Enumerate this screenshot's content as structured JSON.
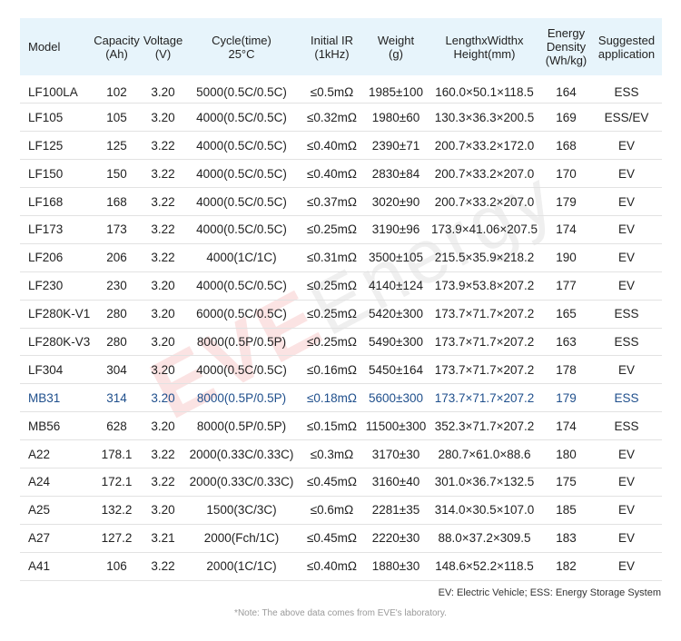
{
  "table": {
    "headers": [
      {
        "line1": "Model",
        "line2": ""
      },
      {
        "line1": "Capacity",
        "line2": "(Ah)"
      },
      {
        "line1": "Voltage",
        "line2": "(V)"
      },
      {
        "line1": "Cycle(time)",
        "line2": "25°C"
      },
      {
        "line1": "Initial IR",
        "line2": "(1kHz)"
      },
      {
        "line1": "Weight",
        "line2": "(g)"
      },
      {
        "line1": "LengthxWidthx",
        "line2": "Height(mm)"
      },
      {
        "line1": "Energy",
        "line2": "Density",
        "line3": "(Wh/kg)"
      },
      {
        "line1": "Suggested",
        "line2": "application"
      }
    ],
    "rows": [
      [
        "LF100LA",
        "102",
        "3.20",
        "5000(0.5C/0.5C)",
        "≤0.5mΩ",
        "1985±100",
        "160.0×50.1×118.5",
        "164",
        "ESS"
      ],
      [
        "LF105",
        "105",
        "3.20",
        "4000(0.5C/0.5C)",
        "≤0.32mΩ",
        "1980±60",
        "130.3×36.3×200.5",
        "169",
        "ESS/EV"
      ],
      [
        "LF125",
        "125",
        "3.22",
        "4000(0.5C/0.5C)",
        "≤0.40mΩ",
        "2390±71",
        "200.7×33.2×172.0",
        "168",
        "EV"
      ],
      [
        "LF150",
        "150",
        "3.22",
        "4000(0.5C/0.5C)",
        "≤0.40mΩ",
        "2830±84",
        "200.7×33.2×207.0",
        "170",
        "EV"
      ],
      [
        "LF168",
        "168",
        "3.22",
        "4000(0.5C/0.5C)",
        "≤0.37mΩ",
        "3020±90",
        "200.7×33.2×207.0",
        "179",
        "EV"
      ],
      [
        "LF173",
        "173",
        "3.22",
        "4000(0.5C/0.5C)",
        "≤0.25mΩ",
        "3190±96",
        "173.9×41.06×207.5",
        "174",
        "EV"
      ],
      [
        "LF206",
        "206",
        "3.22",
        "4000(1C/1C)",
        "≤0.31mΩ",
        "3500±105",
        "215.5×35.9×218.2",
        "190",
        "EV"
      ],
      [
        "LF230",
        "230",
        "3.20",
        "4000(0.5C/0.5C)",
        "≤0.25mΩ",
        "4140±124",
        "173.9×53.8×207.2",
        "177",
        "EV"
      ],
      [
        "LF280K-V1",
        "280",
        "3.20",
        "6000(0.5C/0.5C)",
        "≤0.25mΩ",
        "5420±300",
        "173.7×71.7×207.2",
        "165",
        "ESS"
      ],
      [
        "LF280K-V3",
        "280",
        "3.20",
        "8000(0.5P/0.5P)",
        "≤0.25mΩ",
        "5490±300",
        "173.7×71.7×207.2",
        "163",
        "ESS"
      ],
      [
        "LF304",
        "304",
        "3.20",
        "4000(0.5C/0.5C)",
        "≤0.16mΩ",
        "5450±164",
        "173.7×71.7×207.2",
        "178",
        "EV"
      ],
      [
        "MB31",
        "314",
        "3.20",
        "8000(0.5P/0.5P)",
        "≤0.18mΩ",
        "5600±300",
        "173.7×71.7×207.2",
        "179",
        "ESS"
      ],
      [
        "MB56",
        "628",
        "3.20",
        "8000(0.5P/0.5P)",
        "≤0.15mΩ",
        "11500±300",
        "352.3×71.7×207.2",
        "174",
        "ESS"
      ],
      [
        "A22",
        "178.1",
        "3.22",
        "2000(0.33C/0.33C)",
        "≤0.3mΩ",
        "3170±30",
        "280.7×61.0×88.6",
        "180",
        "EV"
      ],
      [
        "A24",
        "172.1",
        "3.22",
        "2000(0.33C/0.33C)",
        "≤0.45mΩ",
        "3160±40",
        "301.0×36.7×132.5",
        "175",
        "EV"
      ],
      [
        "A25",
        "132.2",
        "3.20",
        "1500(3C/3C)",
        "≤0.6mΩ",
        "2281±35",
        "314.0×30.5×107.0",
        "185",
        "EV"
      ],
      [
        "A27",
        "127.2",
        "3.21",
        "2000(Fch/1C)",
        "≤0.45mΩ",
        "2220±30",
        "88.0×37.2×309.5",
        "183",
        "EV"
      ],
      [
        "A41",
        "106",
        "3.22",
        "2000(1C/1C)",
        "≤0.40mΩ",
        "1880±30",
        "148.6×52.2×118.5",
        "182",
        "EV"
      ]
    ],
    "highlight_row": 11,
    "highlight_color": "#1f4f8c",
    "header_bg": "#e7f4fb"
  },
  "watermark": {
    "brand": "EVE",
    "word": "Energy"
  },
  "legend": "EV: Electric Vehicle;  ESS: Energy Storage System",
  "note": "*Note: The above data comes from EVE's laboratory."
}
